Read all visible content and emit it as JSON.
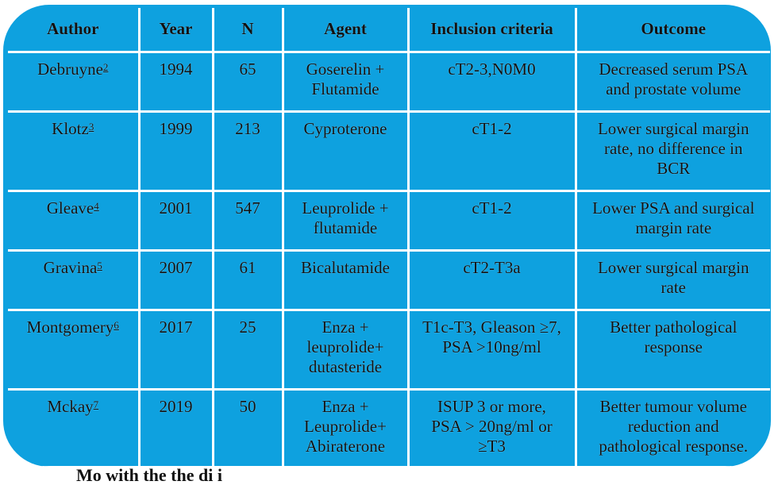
{
  "table": {
    "headers": [
      "Author",
      "Year",
      "N",
      "Agent",
      "Inclusion criteria",
      "Outcome"
    ],
    "rows": [
      {
        "author": "Debruyne",
        "ref": "2",
        "year": "1994",
        "n": "65",
        "agent": [
          "Goserelin +",
          "Flutamide"
        ],
        "criteria": [
          "cT2-3,N0M0"
        ],
        "outcome": [
          "Decreased serum PSA",
          "and prostate volume"
        ]
      },
      {
        "author": "Klotz",
        "ref": "3",
        "year": "1999",
        "n": "213",
        "agent": [
          "Cyproterone"
        ],
        "criteria": [
          "cT1-2"
        ],
        "outcome": [
          "Lower surgical margin",
          "rate, no difference in",
          "BCR"
        ]
      },
      {
        "author": "Gleave",
        "ref": "4",
        "year": "2001",
        "n": "547",
        "agent": [
          "Leuprolide +",
          "flutamide"
        ],
        "criteria": [
          "cT1-2"
        ],
        "outcome": [
          "Lower PSA and surgical",
          "margin rate"
        ]
      },
      {
        "author": "Gravina",
        "ref": "5",
        "year": "2007",
        "n": "61",
        "agent": [
          "Bicalutamide"
        ],
        "criteria": [
          "cT2-T3a"
        ],
        "outcome": [
          "Lower surgical margin",
          "rate"
        ]
      },
      {
        "author": "Montgomery",
        "ref": "6",
        "year": "2017",
        "n": "25",
        "agent": [
          "Enza +",
          "leuprolide+",
          "dutasteride"
        ],
        "criteria": [
          "T1c-T3, Gleason ≥7,",
          "PSA >10ng/ml"
        ],
        "outcome": [
          "Better pathological",
          "response"
        ]
      },
      {
        "author": "Mckay",
        "ref": "7",
        "year": "2019",
        "n": "50",
        "agent": [
          "Enza +",
          "Leuprolide+",
          "Abiraterone"
        ],
        "criteria": [
          "ISUP 3 or more,",
          "PSA > 20ng/ml or",
          "≥T3"
        ],
        "outcome": [
          "Better tumour volume",
          "reduction and",
          "pathological response."
        ]
      }
    ]
  },
  "footer_text": "Mo          with the        the      di     i"
}
